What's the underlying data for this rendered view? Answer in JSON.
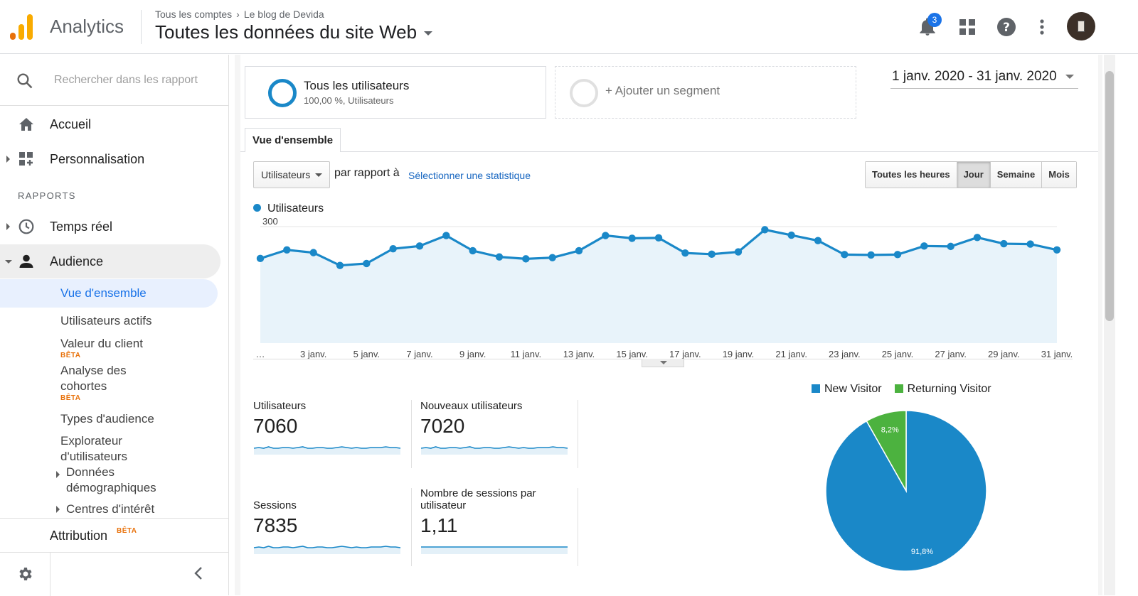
{
  "header": {
    "app_name": "Analytics",
    "breadcrumb": {
      "account": "Tous les comptes",
      "property": "Le blog de Devida"
    },
    "view_title": "Toutes les données du site Web",
    "notifications_count": "3"
  },
  "sidebar": {
    "search_placeholder": "Rechercher dans les rapport",
    "home": "Accueil",
    "customization": "Personnalisation",
    "reports_header": "RAPPORTS",
    "realtime": "Temps réel",
    "audience": "Audience",
    "audience_items": {
      "overview": "Vue d'ensemble",
      "active_users": "Utilisateurs actifs",
      "lifetime_value": "Valeur du client",
      "cohort_1": "Analyse des",
      "cohort_2": "cohortes",
      "audiences": "Types d'audience",
      "explorer_1": "Explorateur",
      "explorer_2": "d'utilisateurs",
      "demographics_1": "Données",
      "demographics_2": "démographiques",
      "interests": "Centres d'intérêt"
    },
    "beta_label": "BÊTA",
    "attribution": "Attribution"
  },
  "segments": {
    "active_title": "Tous les utilisateurs",
    "active_sub": "100,00 %, Utilisateurs",
    "add": "+ Ajouter un segment"
  },
  "date_range": "1 janv. 2020 - 31 janv. 2020",
  "tab": "Vue d'ensemble",
  "controls": {
    "metric": "Utilisateurs",
    "vs_text": "par rapport à",
    "select_stat": "Sélectionner une statistique",
    "periods": [
      "Toutes les heures",
      "Jour",
      "Semaine",
      "Mois"
    ],
    "active_period": "Jour"
  },
  "chart_data": [
    {
      "type": "area",
      "series": [
        {
          "name": "Utilisateurs",
          "values": [
            218,
            240,
            233,
            200,
            205,
            243,
            250,
            277,
            238,
            222,
            217,
            220,
            238,
            277,
            270,
            271,
            232,
            229,
            235,
            292,
            278,
            264,
            228,
            227,
            228,
            250,
            249,
            272,
            256,
            255,
            240
          ]
        }
      ],
      "x": [
        "1 janv.",
        "2 janv.",
        "3 janv.",
        "4 janv.",
        "5 janv.",
        "6 janv.",
        "7 janv.",
        "8 janv.",
        "9 janv.",
        "10 janv.",
        "11 janv.",
        "12 janv.",
        "13 janv.",
        "14 janv.",
        "15 janv.",
        "16 janv.",
        "17 janv.",
        "18 janv.",
        "19 janv.",
        "20 janv.",
        "21 janv.",
        "22 janv.",
        "23 janv.",
        "24 janv.",
        "25 janv.",
        "26 janv.",
        "27 janv.",
        "28 janv.",
        "29 janv.",
        "30 janv.",
        "31 janv."
      ],
      "x_tick_labels": [
        "…",
        "3 janv.",
        "5 janv.",
        "7 janv.",
        "9 janv.",
        "11 janv.",
        "13 janv.",
        "15 janv.",
        "17 janv.",
        "19 janv.",
        "21 janv.",
        "23 janv.",
        "25 janv.",
        "27 janv.",
        "29 janv.",
        "31 janv."
      ],
      "y_ticks": [
        "100",
        "200",
        "300"
      ],
      "ylim": [
        0,
        300
      ],
      "color": "#1a88c8"
    },
    {
      "type": "pie",
      "series": [
        {
          "name": "New Visitor",
          "value": 91.8,
          "label": "91,8%",
          "color": "#1a88c8"
        },
        {
          "name": "Returning Visitor",
          "value": 8.2,
          "label": "8,2%",
          "color": "#4cb23f"
        }
      ]
    }
  ],
  "kpis": [
    {
      "label": "Utilisateurs",
      "value": "7060",
      "spark": [
        5,
        6,
        5,
        7,
        5,
        5,
        6,
        6,
        5,
        6,
        7,
        5,
        5,
        6,
        6,
        5,
        5,
        6,
        7,
        6,
        5,
        6,
        5,
        5,
        6,
        6,
        6,
        7,
        6,
        6,
        5
      ]
    },
    {
      "label": "Nouveaux utilisateurs",
      "value": "7020",
      "spark": [
        5,
        6,
        5,
        7,
        5,
        5,
        6,
        6,
        5,
        6,
        7,
        5,
        5,
        6,
        6,
        5,
        5,
        6,
        7,
        6,
        5,
        6,
        5,
        5,
        6,
        6,
        6,
        7,
        6,
        6,
        5
      ]
    },
    {
      "label": "Sessions",
      "value": "7835",
      "spark": [
        5,
        6,
        5,
        7,
        5,
        5,
        6,
        6,
        5,
        6,
        7,
        5,
        5,
        6,
        6,
        5,
        5,
        6,
        7,
        6,
        5,
        6,
        5,
        5,
        6,
        6,
        6,
        7,
        6,
        6,
        5
      ]
    },
    {
      "label": "Nombre de sessions par utilisateur",
      "value": "1,11",
      "spark": [
        6,
        6,
        6,
        6,
        6,
        6,
        6,
        6,
        6,
        6,
        6,
        6,
        6,
        6,
        6,
        6,
        6,
        6,
        6,
        6,
        6,
        6,
        6,
        6,
        6,
        6,
        6,
        6,
        6,
        6,
        6
      ]
    }
  ]
}
